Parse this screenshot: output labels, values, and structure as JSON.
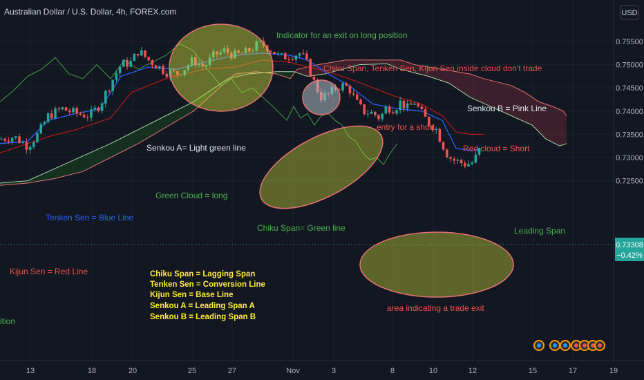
{
  "header": {
    "symbol_title": "Australian Dollar / U.S. Dollar, 4h, FOREX.com"
  },
  "currency_button": "USD",
  "price_axis": {
    "ticks": [
      "0.75500",
      "0.75000",
      "0.74500",
      "0.74000",
      "0.73500",
      "0.73000",
      "0.72500"
    ],
    "tick_values": [
      0.755,
      0.75,
      0.745,
      0.74,
      0.735,
      0.73,
      0.725
    ],
    "last_price": "0.73308",
    "last_change": "−0.42%"
  },
  "time_axis": {
    "ticks": [
      "13",
      "18",
      "20",
      "25",
      "27",
      "Nov",
      "3",
      "8",
      "10",
      "12",
      "15",
      "17",
      "19"
    ]
  },
  "annotations": {
    "exit_long": "Indicator for an exit on long position",
    "inside_cloud": "Chiku Span, Tenken Sen, Kijun Sen inside cloud don't trade",
    "senkou_b": "Senkou B = Pink Line",
    "entry_short": "entry for a short",
    "senkou_a": "Senkou A= Light green line",
    "red_cloud": "Red cloud = Short",
    "green_cloud": "Green Cloud = long",
    "tenken": "Tenken Sen = Blue Line",
    "chiku_green": "Chiku Span= Green line",
    "leading_span": "Leading Span",
    "kijun": "Kijun Sen = Red Line",
    "area_exit": "area indicating a trade exit",
    "position_cut": "ition"
  },
  "legend_block": [
    "Chiku Span = Lagging Span",
    "Tenken Sen = Conversion Line",
    "Kijun Sen = Base Line",
    "Senkou A = Leading Span A",
    "Senkou B = Leading Span B"
  ],
  "colors": {
    "background": "#131722",
    "up_candle": "#26a69a",
    "down_candle": "#ef5350",
    "tenkan": "#2962ff",
    "kijun": "#b71c1c",
    "chikou": "#43a047",
    "senkou_a": "#a5d6a7",
    "senkou_b": "#e57373",
    "annotation_green": "#4caf50",
    "annotation_red": "#ef5350",
    "annotation_white": "#e0e3eb",
    "legend_yellow": "#ffeb3b",
    "price_badge": "#26a69a"
  },
  "chart_data": {
    "type": "candlestick",
    "title": "Australian Dollar / U.S. Dollar, 4h, FOREX.com",
    "ylim": [
      0.7225,
      0.7575
    ],
    "indicator": "Ichimoku Cloud",
    "price_path": [
      [
        0,
        0.734
      ],
      [
        20,
        0.7345
      ],
      [
        40,
        0.7325
      ],
      [
        55,
        0.735
      ],
      [
        70,
        0.739
      ],
      [
        90,
        0.7405
      ],
      [
        110,
        0.7395
      ],
      [
        130,
        0.739
      ],
      [
        145,
        0.7415
      ],
      [
        160,
        0.746
      ],
      [
        175,
        0.75
      ],
      [
        190,
        0.7505
      ],
      [
        200,
        0.753
      ],
      [
        215,
        0.751
      ],
      [
        225,
        0.75
      ],
      [
        240,
        0.7485
      ],
      [
        255,
        0.748
      ],
      [
        265,
        0.749
      ],
      [
        280,
        0.751
      ],
      [
        295,
        0.7495
      ],
      [
        310,
        0.752
      ],
      [
        325,
        0.753
      ],
      [
        340,
        0.752
      ],
      [
        355,
        0.7525
      ],
      [
        370,
        0.754
      ],
      [
        380,
        0.7545
      ],
      [
        395,
        0.753
      ],
      [
        405,
        0.7515
      ],
      [
        420,
        0.752
      ],
      [
        435,
        0.7525
      ],
      [
        445,
        0.75
      ],
      [
        455,
        0.746
      ],
      [
        465,
        0.743
      ],
      [
        475,
        0.7435
      ],
      [
        485,
        0.745
      ],
      [
        495,
        0.7455
      ],
      [
        505,
        0.745
      ],
      [
        515,
        0.742
      ],
      [
        525,
        0.74
      ],
      [
        540,
        0.7395
      ],
      [
        550,
        0.7385
      ],
      [
        560,
        0.741
      ],
      [
        570,
        0.7405
      ],
      [
        580,
        0.742
      ],
      [
        590,
        0.7405
      ],
      [
        600,
        0.742
      ],
      [
        610,
        0.7395
      ],
      [
        620,
        0.7375
      ],
      [
        630,
        0.7365
      ],
      [
        640,
        0.733
      ],
      [
        648,
        0.7305
      ],
      [
        655,
        0.7295
      ],
      [
        665,
        0.729
      ],
      [
        675,
        0.7285
      ],
      [
        685,
        0.729
      ],
      [
        695,
        0.732
      ]
    ],
    "tenkan_sen": [
      [
        0,
        0.733
      ],
      [
        40,
        0.7335
      ],
      [
        70,
        0.738
      ],
      [
        110,
        0.7395
      ],
      [
        145,
        0.7405
      ],
      [
        175,
        0.7475
      ],
      [
        215,
        0.7495
      ],
      [
        255,
        0.749
      ],
      [
        295,
        0.7505
      ],
      [
        340,
        0.752
      ],
      [
        380,
        0.7525
      ],
      [
        420,
        0.752
      ],
      [
        445,
        0.751
      ],
      [
        475,
        0.748
      ],
      [
        505,
        0.7455
      ],
      [
        540,
        0.7415
      ],
      [
        575,
        0.7405
      ],
      [
        610,
        0.74
      ],
      [
        640,
        0.738
      ],
      [
        660,
        0.732
      ],
      [
        680,
        0.7315
      ],
      [
        695,
        0.7318
      ]
    ],
    "kijun_sen": [
      [
        0,
        0.731
      ],
      [
        40,
        0.733
      ],
      [
        70,
        0.7345
      ],
      [
        110,
        0.736
      ],
      [
        160,
        0.7385
      ],
      [
        190,
        0.744
      ],
      [
        240,
        0.747
      ],
      [
        295,
        0.749
      ],
      [
        340,
        0.7495
      ],
      [
        380,
        0.751
      ],
      [
        420,
        0.7505
      ],
      [
        445,
        0.7495
      ],
      [
        475,
        0.7485
      ],
      [
        505,
        0.747
      ],
      [
        540,
        0.745
      ],
      [
        575,
        0.743
      ],
      [
        610,
        0.7415
      ],
      [
        640,
        0.739
      ],
      [
        660,
        0.7355
      ],
      [
        680,
        0.735
      ],
      [
        700,
        0.735
      ]
    ],
    "chikou_span": [
      [
        0,
        0.742
      ],
      [
        20,
        0.7445
      ],
      [
        40,
        0.7475
      ],
      [
        60,
        0.749
      ],
      [
        80,
        0.7515
      ],
      [
        100,
        0.748
      ],
      [
        120,
        0.747
      ],
      [
        140,
        0.75
      ],
      [
        160,
        0.747
      ],
      [
        180,
        0.751
      ],
      [
        200,
        0.749
      ],
      [
        220,
        0.7505
      ],
      [
        240,
        0.752
      ],
      [
        260,
        0.7545
      ],
      [
        280,
        0.753
      ],
      [
        300,
        0.749
      ],
      [
        320,
        0.7455
      ],
      [
        335,
        0.747
      ],
      [
        350,
        0.744
      ],
      [
        365,
        0.745
      ],
      [
        380,
        0.743
      ],
      [
        395,
        0.741
      ],
      [
        405,
        0.7395
      ],
      [
        415,
        0.738
      ],
      [
        425,
        0.741
      ],
      [
        435,
        0.7385
      ],
      [
        445,
        0.7395
      ],
      [
        455,
        0.737
      ],
      [
        465,
        0.739
      ],
      [
        475,
        0.7395
      ],
      [
        485,
        0.738
      ],
      [
        495,
        0.737
      ],
      [
        505,
        0.7345
      ],
      [
        515,
        0.7335
      ],
      [
        525,
        0.731
      ],
      [
        535,
        0.7295
      ],
      [
        545,
        0.73
      ],
      [
        555,
        0.7285
      ],
      [
        565,
        0.731
      ],
      [
        575,
        0.733
      ]
    ],
    "senkou_span_a": [
      [
        0,
        0.7245
      ],
      [
        40,
        0.725
      ],
      [
        70,
        0.727
      ],
      [
        100,
        0.729
      ],
      [
        130,
        0.731
      ],
      [
        160,
        0.733
      ],
      [
        200,
        0.736
      ],
      [
        240,
        0.739
      ],
      [
        280,
        0.742
      ],
      [
        310,
        0.745
      ],
      [
        330,
        0.747
      ],
      [
        360,
        0.748
      ],
      [
        400,
        0.7485
      ],
      [
        425,
        0.7485
      ],
      [
        445,
        0.7475
      ],
      [
        470,
        0.748
      ],
      [
        495,
        0.749
      ],
      [
        520,
        0.75
      ],
      [
        560,
        0.7502
      ],
      [
        580,
        0.749
      ],
      [
        620,
        0.7475
      ],
      [
        650,
        0.746
      ],
      [
        680,
        0.743
      ],
      [
        710,
        0.741
      ],
      [
        740,
        0.739
      ],
      [
        770,
        0.737
      ],
      [
        790,
        0.734
      ],
      [
        810,
        0.7325
      ],
      [
        820,
        0.733
      ]
    ],
    "senkou_span_b": [
      [
        0,
        0.724
      ],
      [
        40,
        0.7245
      ],
      [
        80,
        0.7255
      ],
      [
        120,
        0.727
      ],
      [
        160,
        0.73
      ],
      [
        200,
        0.733
      ],
      [
        240,
        0.7365
      ],
      [
        280,
        0.74
      ],
      [
        310,
        0.744
      ],
      [
        340,
        0.748
      ],
      [
        370,
        0.7485
      ],
      [
        400,
        0.748
      ],
      [
        420,
        0.747
      ],
      [
        430,
        0.749
      ],
      [
        460,
        0.75
      ],
      [
        500,
        0.751
      ],
      [
        540,
        0.751
      ],
      [
        580,
        0.751
      ],
      [
        600,
        0.75
      ],
      [
        640,
        0.749
      ],
      [
        680,
        0.748
      ],
      [
        700,
        0.747
      ],
      [
        740,
        0.7455
      ],
      [
        760,
        0.744
      ],
      [
        780,
        0.742
      ],
      [
        800,
        0.741
      ],
      [
        815,
        0.74
      ],
      [
        820,
        0.739
      ]
    ]
  }
}
